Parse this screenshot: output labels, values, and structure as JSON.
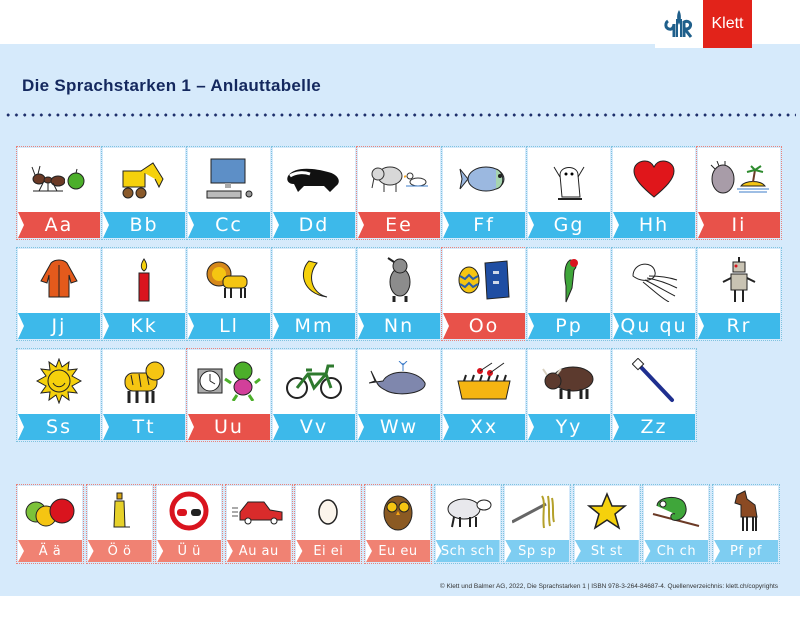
{
  "header": {
    "title": "Die Sprachstarken 1 – Anlauttabelle",
    "logo_text": "Klett"
  },
  "colors": {
    "background": "#d6eafb",
    "title": "#14285e",
    "consonant_banner": "#3db9ea",
    "vowel_banner": "#e8524a",
    "extra_vowel_banner": "#f08273",
    "extra_consonant_banner": "#7ecdf1",
    "logo_red": "#e2231a",
    "logo_blue": "#1f5f8b"
  },
  "main_letters": [
    {
      "label": "Aa",
      "vowel": true,
      "pictures": [
        "ant",
        "apple"
      ]
    },
    {
      "label": "Bb",
      "vowel": false,
      "pictures": [
        "excavator"
      ]
    },
    {
      "label": "Cc",
      "vowel": false,
      "pictures": [
        "computer"
      ]
    },
    {
      "label": "Dd",
      "vowel": false,
      "pictures": [
        "badger"
      ]
    },
    {
      "label": "Ee",
      "vowel": true,
      "pictures": [
        "elephant",
        "duck"
      ]
    },
    {
      "label": "Ff",
      "vowel": false,
      "pictures": [
        "fish"
      ]
    },
    {
      "label": "Gg",
      "vowel": false,
      "pictures": [
        "ghost"
      ]
    },
    {
      "label": "Hh",
      "vowel": false,
      "pictures": [
        "heart"
      ]
    },
    {
      "label": "Ii",
      "vowel": true,
      "pictures": [
        "hedgehog",
        "island"
      ]
    },
    {
      "label": "Jj",
      "vowel": false,
      "pictures": [
        "jacket"
      ]
    },
    {
      "label": "Kk",
      "vowel": false,
      "pictures": [
        "candle"
      ]
    },
    {
      "label": "Ll",
      "vowel": false,
      "pictures": [
        "lion"
      ]
    },
    {
      "label": "Mm",
      "vowel": false,
      "pictures": [
        "moon"
      ]
    },
    {
      "label": "Nn",
      "vowel": false,
      "pictures": [
        "rhinoceros"
      ]
    },
    {
      "label": "Oo",
      "vowel": true,
      "pictures": [
        "easter-egg",
        "binder"
      ]
    },
    {
      "label": "Pp",
      "vowel": false,
      "pictures": [
        "parrot"
      ]
    },
    {
      "label": "Qu qu",
      "vowel": false,
      "pictures": [
        "jellyfish"
      ]
    },
    {
      "label": "Rr",
      "vowel": false,
      "pictures": [
        "robot"
      ]
    },
    {
      "label": "Ss",
      "vowel": false,
      "pictures": [
        "sun"
      ]
    },
    {
      "label": "Tt",
      "vowel": false,
      "pictures": [
        "tiger"
      ]
    },
    {
      "label": "Uu",
      "vowel": true,
      "pictures": [
        "clock",
        "monster"
      ]
    },
    {
      "label": "Vv",
      "vowel": false,
      "pictures": [
        "bicycle"
      ]
    },
    {
      "label": "Ww",
      "vowel": false,
      "pictures": [
        "whale"
      ]
    },
    {
      "label": "Xx",
      "vowel": false,
      "pictures": [
        "xylophone"
      ]
    },
    {
      "label": "Yy",
      "vowel": false,
      "pictures": [
        "yak"
      ]
    },
    {
      "label": "Zz",
      "vowel": false,
      "pictures": [
        "toothbrush"
      ]
    }
  ],
  "extra_letters": [
    {
      "label": "Ä ä",
      "type": "vowel",
      "pictures": [
        "apples"
      ]
    },
    {
      "label": "Ö ö",
      "type": "vowel",
      "pictures": [
        "oil-bottle"
      ]
    },
    {
      "label": "Ü ü",
      "type": "vowel",
      "pictures": [
        "no-overtaking-sign"
      ]
    },
    {
      "label": "Au au",
      "type": "vowel",
      "pictures": [
        "car"
      ]
    },
    {
      "label": "Ei ei",
      "type": "vowel",
      "pictures": [
        "egg"
      ]
    },
    {
      "label": "Eu eu",
      "type": "vowel",
      "pictures": [
        "owl"
      ]
    },
    {
      "label": "Sch sch",
      "type": "consonant",
      "pictures": [
        "sheep"
      ]
    },
    {
      "label": "Sp sp",
      "type": "consonant",
      "pictures": [
        "spaghetti"
      ]
    },
    {
      "label": "St st",
      "type": "consonant",
      "pictures": [
        "star"
      ]
    },
    {
      "label": "Ch ch",
      "type": "consonant",
      "pictures": [
        "chameleon"
      ]
    },
    {
      "label": "Pf pf",
      "type": "consonant",
      "pictures": [
        "horse"
      ]
    }
  ],
  "footer": {
    "text": "© Klett und Balmer AG, 2022, Die Sprachstarken 1 | ISBN 978-3-264-84687-4. Quellenverzeichnis: klett.ch/copyrights"
  }
}
